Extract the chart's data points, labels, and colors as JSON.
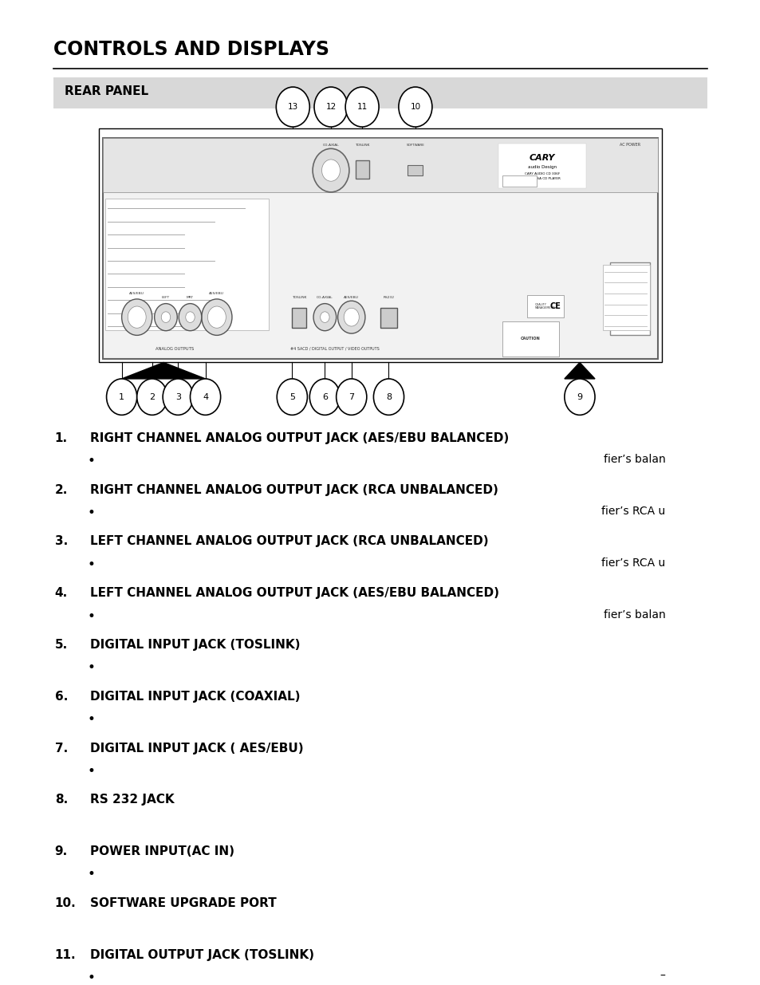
{
  "title": "CONTROLS AND DISPLAYS",
  "section_header": "REAR PANEL",
  "bg_color": "#ffffff",
  "header_bg_color": "#d8d8d8",
  "items": [
    {
      "num": "1.",
      "title": "RIGHT CHANNEL ANALOG OUTPUT JACK (AES/EBU BALANCED)",
      "bullet": "fier’s balan",
      "bullet2": null
    },
    {
      "num": "2.",
      "title": "RIGHT CHANNEL ANALOG OUTPUT JACK (RCA UNBALANCED)",
      "bullet": "fier’s RCA u",
      "bullet2": null
    },
    {
      "num": "3.",
      "title": "LEFT CHANNEL ANALOG OUTPUT JACK (RCA UNBALANCED)",
      "bullet": "fier’s RCA u",
      "bullet2": null
    },
    {
      "num": "4.",
      "title": "LEFT CHANNEL ANALOG OUTPUT JACK (AES/EBU BALANCED)",
      "bullet": "fier’s balan",
      "bullet2": null
    },
    {
      "num": "5.",
      "title": "DIGITAL INPUT JACK (TOSLINK)",
      "bullet": "",
      "bullet2": null
    },
    {
      "num": "6.",
      "title": "DIGITAL INPUT JACK (COAXIAL)",
      "bullet": "",
      "bullet2": null
    },
    {
      "num": "7.",
      "title": "DIGITAL INPUT JACK ( AES/EBU)",
      "bullet": "",
      "bullet2": null
    },
    {
      "num": "8.",
      "title": "RS 232 JACK",
      "bullet": null,
      "bullet2": null
    },
    {
      "num": "9.",
      "title": "POWER INPUT(AC IN)",
      "bullet": "",
      "bullet2": null
    },
    {
      "num": "10.",
      "title": "SOFTWARE UPGRADE PORT",
      "bullet": null,
      "bullet2": null
    },
    {
      "num": "11.",
      "title": "DIGITAL OUTPUT JACK (TOSLINK)",
      "bullet": "–",
      "bullet2": ""
    }
  ]
}
